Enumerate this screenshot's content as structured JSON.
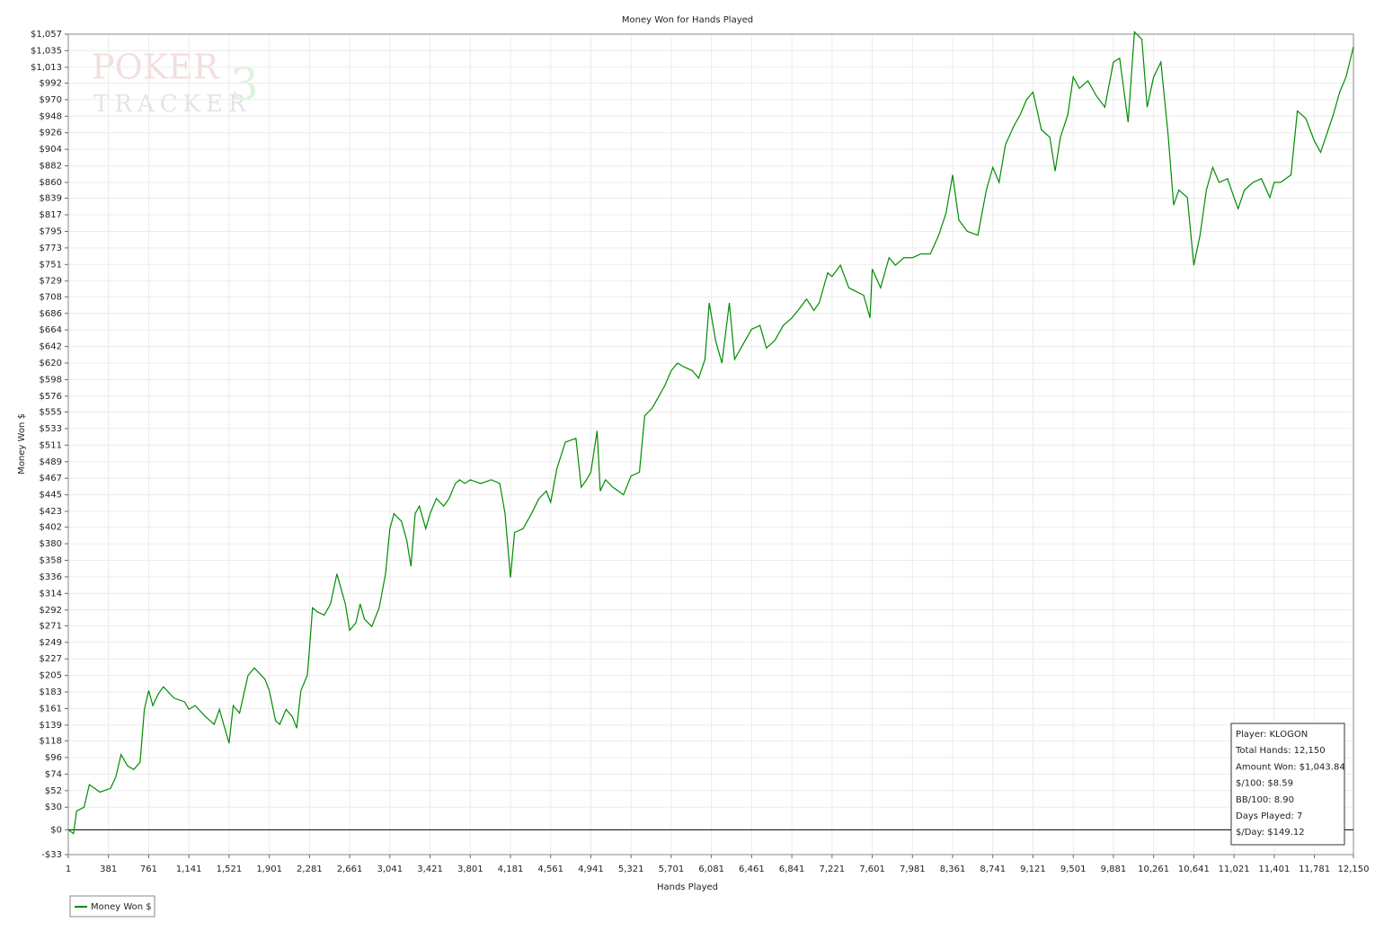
{
  "chart_data": {
    "type": "line",
    "title": "Money Won for Hands Played",
    "x_label": "Hands Played",
    "y_label": "Money Won $",
    "logo": [
      "POKER",
      "TRACKER",
      "3"
    ],
    "stats": [
      "Player: KLOGON",
      "Total Hands: 12,150",
      "Amount Won: $1,043.84",
      "$/100: $8.59",
      "BB/100: 8.90",
      "Days Played: 7",
      "$/Day: $149.12"
    ],
    "grid": true,
    "legend": "bottom-left",
    "xlim": [
      1,
      12150
    ],
    "ylim": [
      -33,
      1057
    ],
    "xticks": [
      1,
      381,
      761,
      {
        "value": 1141,
        "label": "1,141"
      },
      {
        "value": 1521,
        "label": "1,521"
      },
      {
        "value": 1901,
        "label": "1,901"
      },
      {
        "value": 2281,
        "label": "2,281"
      },
      {
        "value": 2661,
        "label": "2,661"
      },
      {
        "value": 3041,
        "label": "3,041"
      },
      {
        "value": 3421,
        "label": "3,421"
      },
      {
        "value": 3801,
        "label": "3,801"
      },
      {
        "value": 4181,
        "label": "4,181"
      },
      {
        "value": 4561,
        "label": "4,561"
      },
      {
        "value": 4941,
        "label": "4,941"
      },
      {
        "value": 5321,
        "label": "5,321"
      },
      {
        "value": 5701,
        "label": "5,701"
      },
      {
        "value": 6081,
        "label": "6,081"
      },
      {
        "value": 6461,
        "label": "6,461"
      },
      {
        "value": 6841,
        "label": "6,841"
      },
      {
        "value": 7221,
        "label": "7,221"
      },
      {
        "value": 7601,
        "label": "7,601"
      },
      {
        "value": 7981,
        "label": "7,981"
      },
      {
        "value": 8361,
        "label": "8,361"
      },
      {
        "value": 8741,
        "label": "8,741"
      },
      {
        "value": 9121,
        "label": "9,121"
      },
      {
        "value": 9501,
        "label": "9,501"
      },
      {
        "value": 9881,
        "label": "9,881"
      },
      {
        "value": 10261,
        "label": "10,261"
      },
      {
        "value": 10641,
        "label": "10,641"
      },
      {
        "value": 11021,
        "label": "11,021"
      },
      {
        "value": 11401,
        "label": "11,401"
      },
      {
        "value": 11781,
        "label": "11,781"
      },
      {
        "value": 12150,
        "label": "12,150"
      }
    ],
    "yticks": [
      {
        "value": 1057,
        "label": "$1,057"
      },
      {
        "value": 1035,
        "label": "$1,035"
      },
      {
        "value": 1013,
        "label": "$1,013"
      },
      {
        "value": 992,
        "label": "$992"
      },
      {
        "value": 970,
        "label": "$970"
      },
      {
        "value": 948,
        "label": "$948"
      },
      {
        "value": 926,
        "label": "$926"
      },
      {
        "value": 904,
        "label": "$904"
      },
      {
        "value": 882,
        "label": "$882"
      },
      {
        "value": 860,
        "label": "$860"
      },
      {
        "value": 839,
        "label": "$839"
      },
      {
        "value": 817,
        "label": "$817"
      },
      {
        "value": 795,
        "label": "$795"
      },
      {
        "value": 773,
        "label": "$773"
      },
      {
        "value": 751,
        "label": "$751"
      },
      {
        "value": 729,
        "label": "$729"
      },
      {
        "value": 708,
        "label": "$708"
      },
      {
        "value": 686,
        "label": "$686"
      },
      {
        "value": 664,
        "label": "$664"
      },
      {
        "value": 642,
        "label": "$642"
      },
      {
        "value": 620,
        "label": "$620"
      },
      {
        "value": 598,
        "label": "$598"
      },
      {
        "value": 576,
        "label": "$576"
      },
      {
        "value": 555,
        "label": "$555"
      },
      {
        "value": 533,
        "label": "$533"
      },
      {
        "value": 511,
        "label": "$511"
      },
      {
        "value": 489,
        "label": "$489"
      },
      {
        "value": 467,
        "label": "$467"
      },
      {
        "value": 445,
        "label": "$445"
      },
      {
        "value": 423,
        "label": "$423"
      },
      {
        "value": 402,
        "label": "$402"
      },
      {
        "value": 380,
        "label": "$380"
      },
      {
        "value": 358,
        "label": "$358"
      },
      {
        "value": 336,
        "label": "$336"
      },
      {
        "value": 314,
        "label": "$314"
      },
      {
        "value": 292,
        "label": "$292"
      },
      {
        "value": 271,
        "label": "$271"
      },
      {
        "value": 249,
        "label": "$249"
      },
      {
        "value": 227,
        "label": "$227"
      },
      {
        "value": 205,
        "label": "$205"
      },
      {
        "value": 183,
        "label": "$183"
      },
      {
        "value": 161,
        "label": "$161"
      },
      {
        "value": 139,
        "label": "$139"
      },
      {
        "value": 118,
        "label": "$118"
      },
      {
        "value": 96,
        "label": "$96"
      },
      {
        "value": 74,
        "label": "$74"
      },
      {
        "value": 52,
        "label": "$52"
      },
      {
        "value": 30,
        "label": "$30"
      },
      {
        "value": 0,
        "label": "$0"
      },
      {
        "value": -33,
        "label": "-$33"
      }
    ],
    "x": [
      1,
      50,
      80,
      150,
      200,
      250,
      300,
      400,
      450,
      500,
      560,
      620,
      680,
      720,
      761,
      800,
      850,
      900,
      1000,
      1100,
      1141,
      1200,
      1300,
      1380,
      1430,
      1480,
      1521,
      1560,
      1620,
      1700,
      1760,
      1860,
      1901,
      1960,
      2000,
      2060,
      2120,
      2160,
      2200,
      2260,
      2281,
      2310,
      2350,
      2420,
      2480,
      2540,
      2580,
      2620,
      2661,
      2720,
      2760,
      2800,
      2870,
      2940,
      3000,
      3041,
      3080,
      3150,
      3200,
      3240,
      3280,
      3320,
      3380,
      3421,
      3480,
      3550,
      3600,
      3660,
      3700,
      3750,
      3801,
      3900,
      4000,
      4080,
      4130,
      4181,
      4220,
      4300,
      4380,
      4450,
      4520,
      4561,
      4620,
      4700,
      4800,
      4850,
      4900,
      4941,
      5000,
      5030,
      5080,
      5150,
      5250,
      5321,
      5400,
      5450,
      5520,
      5580,
      5640,
      5701,
      5760,
      5820,
      5900,
      5960,
      6020,
      6060,
      6120,
      6180,
      6250,
      6300,
      6400,
      6461,
      6540,
      6600,
      6680,
      6760,
      6841,
      6900,
      6980,
      7050,
      7100,
      7180,
      7221,
      7300,
      7380,
      7450,
      7520,
      7580,
      7601,
      7680,
      7760,
      7820,
      7900,
      7981,
      8060,
      8150,
      8230,
      8300,
      8361,
      8420,
      8500,
      8600,
      8680,
      8741,
      8800,
      8860,
      8940,
      9000,
      9060,
      9121,
      9200,
      9280,
      9330,
      9380,
      9450,
      9501,
      9560,
      9640,
      9720,
      9800,
      9881,
      9940,
      10020,
      10080,
      10150,
      10200,
      10261,
      10330,
      10400,
      10450,
      10500,
      10580,
      10641,
      10700,
      10760,
      10820,
      10880,
      10960,
      11021,
      11060,
      11120,
      11200,
      11280,
      11360,
      11401,
      11460,
      11560,
      11620,
      11700,
      11781,
      11840,
      11900,
      11960,
      12020,
      12080,
      12150
    ],
    "series": [
      {
        "name": "Money Won $",
        "color": "#008c00",
        "values": [
          0,
          -5,
          25,
          30,
          60,
          55,
          50,
          55,
          70,
          100,
          85,
          80,
          90,
          160,
          185,
          165,
          180,
          190,
          175,
          170,
          160,
          165,
          150,
          140,
          160,
          135,
          115,
          165,
          155,
          205,
          215,
          200,
          185,
          145,
          140,
          160,
          150,
          135,
          185,
          205,
          240,
          295,
          290,
          285,
          300,
          340,
          320,
          300,
          265,
          275,
          300,
          280,
          270,
          295,
          340,
          400,
          420,
          410,
          385,
          350,
          420,
          430,
          400,
          420,
          440,
          430,
          440,
          460,
          465,
          460,
          465,
          460,
          465,
          460,
          420,
          335,
          395,
          400,
          420,
          440,
          450,
          435,
          480,
          515,
          520,
          455,
          465,
          475,
          530,
          450,
          465,
          455,
          445,
          470,
          475,
          550,
          560,
          575,
          590,
          610,
          620,
          615,
          610,
          600,
          625,
          700,
          650,
          620,
          700,
          625,
          650,
          665,
          670,
          640,
          650,
          670,
          680,
          690,
          705,
          690,
          700,
          740,
          735,
          750,
          720,
          715,
          710,
          680,
          745,
          720,
          760,
          750,
          760,
          760,
          765,
          765,
          790,
          820,
          870,
          810,
          795,
          790,
          850,
          880,
          860,
          910,
          935,
          950,
          970,
          980,
          930,
          920,
          875,
          920,
          950,
          1000,
          985,
          995,
          975,
          960,
          1020,
          1025,
          940,
          1060,
          1050,
          960,
          1000,
          1020,
          920,
          830,
          850,
          840,
          750,
          790,
          850,
          880,
          860,
          865,
          840,
          825,
          850,
          860,
          865,
          840,
          860,
          860,
          870,
          955,
          945,
          915,
          900,
          925,
          950,
          980,
          1000,
          1040
        ]
      }
    ]
  }
}
